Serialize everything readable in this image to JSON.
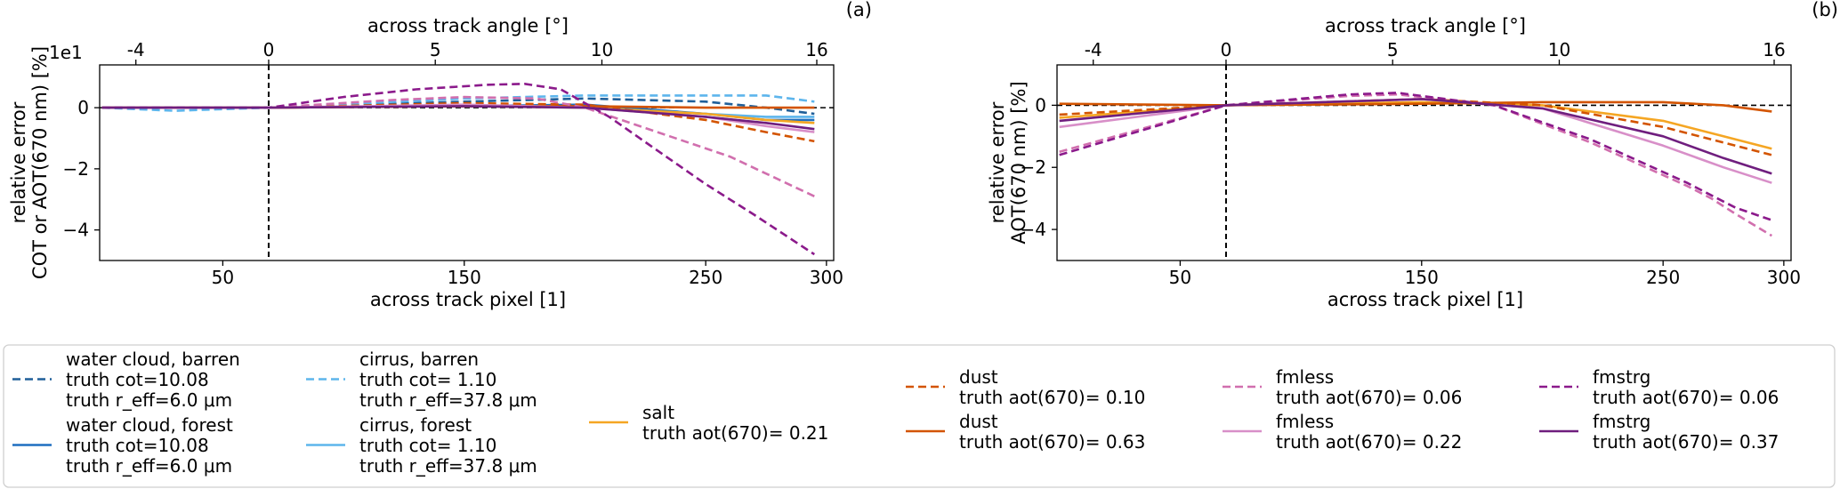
{
  "chart_data": [
    {
      "type": "line",
      "panel_label": "(a)",
      "xlabel": "across track pixel [1]",
      "ylabel_lines": [
        "relative error",
        "COT or AOT(670 nm) [%]"
      ],
      "top_xlabel": "across track angle [°]",
      "offset_label": "1e1",
      "xlim": [
        -1,
        303
      ],
      "ylim": [
        -5.0,
        1.4
      ],
      "xticks": [
        50,
        150,
        250,
        300
      ],
      "xtick_labels": [
        "50",
        "150",
        "250",
        "300"
      ],
      "yticks": [
        0,
        -2,
        -4
      ],
      "ytick_labels": [
        "0",
        "−2",
        "−4"
      ],
      "top_ticks": [
        {
          "x": 14,
          "label": "-4"
        },
        {
          "x": 69,
          "label": "0"
        },
        {
          "x": 138,
          "label": "5"
        },
        {
          "x": 207,
          "label": "10"
        },
        {
          "x": 296,
          "label": "16"
        }
      ],
      "reference_lines": {
        "vertical_x": 69,
        "horizontal_y": 0
      },
      "series": [
        {
          "name": "water cloud, barren",
          "color": "#1f5f99",
          "dash": true,
          "x": [
            0,
            69,
            150,
            200,
            250,
            275,
            295
          ],
          "y": [
            0.0,
            0.0,
            0.2,
            0.3,
            0.2,
            0.0,
            -0.2
          ]
        },
        {
          "name": "water cloud, forest",
          "color": "#1f6fc0",
          "dash": false,
          "x": [
            0,
            69,
            150,
            200,
            250,
            275,
            295
          ],
          "y": [
            0.0,
            0.0,
            0.05,
            0.1,
            -0.2,
            -0.4,
            -0.4
          ]
        },
        {
          "name": "cirrus, barren",
          "color": "#5db5ec",
          "dash": true,
          "x": [
            0,
            30,
            69,
            150,
            200,
            250,
            275,
            295
          ],
          "y": [
            0.0,
            -0.1,
            0.0,
            0.3,
            0.4,
            0.4,
            0.4,
            0.2
          ]
        },
        {
          "name": "cirrus, forest",
          "color": "#5db5ec",
          "dash": false,
          "x": [
            0,
            69,
            150,
            200,
            250,
            275,
            295
          ],
          "y": [
            0.0,
            0.0,
            0.05,
            0.0,
            -0.2,
            -0.3,
            -0.3
          ]
        },
        {
          "name": "salt",
          "color": "#f5a623",
          "dash": false,
          "x": [
            0,
            69,
            150,
            200,
            250,
            275,
            295
          ],
          "y": [
            0.0,
            0.0,
            0.05,
            0.0,
            -0.2,
            -0.4,
            -0.5
          ]
        },
        {
          "name": "dust (aot 0.10)",
          "color": "#d35400",
          "dash": true,
          "x": [
            0,
            69,
            150,
            200,
            250,
            275,
            295
          ],
          "y": [
            0.0,
            0.0,
            0.15,
            0.1,
            -0.4,
            -0.8,
            -1.1
          ]
        },
        {
          "name": "dust (aot 0.63)",
          "color": "#d35400",
          "dash": false,
          "x": [
            0,
            69,
            150,
            200,
            250,
            275,
            295
          ],
          "y": [
            0.0,
            0.0,
            0.05,
            0.05,
            0.0,
            0.0,
            0.0
          ]
        },
        {
          "name": "fmless (aot 0.06)",
          "color": "#d16fae",
          "dash": true,
          "x": [
            0,
            69,
            120,
            150,
            180,
            200,
            230,
            260,
            295
          ],
          "y": [
            0.0,
            0.0,
            0.25,
            0.35,
            0.3,
            0.0,
            -0.8,
            -1.6,
            -2.9
          ]
        },
        {
          "name": "fmless (aot 0.22)",
          "color": "#d88fc8",
          "dash": false,
          "x": [
            0,
            69,
            150,
            200,
            250,
            275,
            295
          ],
          "y": [
            0.0,
            0.0,
            0.1,
            0.0,
            -0.3,
            -0.6,
            -0.8
          ]
        },
        {
          "name": "fmstrg (aot 0.06)",
          "color": "#8b1a8b",
          "dash": true,
          "x": [
            0,
            69,
            100,
            130,
            160,
            175,
            190,
            210,
            230,
            250,
            270,
            295
          ],
          "y": [
            0.0,
            0.0,
            0.35,
            0.6,
            0.75,
            0.78,
            0.6,
            -0.3,
            -1.4,
            -2.5,
            -3.5,
            -4.8
          ]
        },
        {
          "name": "fmstrg (aot 0.37)",
          "color": "#6f1e7e",
          "dash": false,
          "x": [
            0,
            69,
            150,
            200,
            250,
            275,
            295
          ],
          "y": [
            0.0,
            0.0,
            0.05,
            0.0,
            -0.3,
            -0.5,
            -0.7
          ]
        }
      ]
    },
    {
      "type": "line",
      "panel_label": "(b)",
      "xlabel": "across track pixel [1]",
      "ylabel_lines": [
        "relative error",
        "AOT(670 nm) [%]"
      ],
      "top_xlabel": "across track angle [°]",
      "xlim": [
        -1,
        303
      ],
      "ylim": [
        -5.0,
        1.3
      ],
      "xticks": [
        50,
        150,
        250,
        300
      ],
      "xtick_labels": [
        "50",
        "150",
        "250",
        "300"
      ],
      "yticks": [
        0,
        -2,
        -4
      ],
      "ytick_labels": [
        "0",
        "−2",
        "−4"
      ],
      "top_ticks": [
        {
          "x": 14,
          "label": "-4"
        },
        {
          "x": 69,
          "label": "0"
        },
        {
          "x": 138,
          "label": "5"
        },
        {
          "x": 207,
          "label": "10"
        },
        {
          "x": 296,
          "label": "16"
        }
      ],
      "reference_lines": {
        "vertical_x": 69,
        "horizontal_y": 0
      },
      "series": [
        {
          "name": "salt",
          "color": "#f5a623",
          "dash": false,
          "x": [
            0,
            69,
            150,
            200,
            250,
            275,
            295
          ],
          "y": [
            -0.4,
            0.0,
            0.1,
            0.0,
            -0.5,
            -1.0,
            -1.4
          ]
        },
        {
          "name": "dust (aot 0.10)",
          "color": "#d35400",
          "dash": true,
          "x": [
            0,
            69,
            150,
            200,
            250,
            275,
            295
          ],
          "y": [
            -0.3,
            0.0,
            0.2,
            0.0,
            -0.7,
            -1.2,
            -1.6
          ]
        },
        {
          "name": "dust (aot 0.63)",
          "color": "#d35400",
          "dash": false,
          "x": [
            0,
            69,
            150,
            200,
            250,
            275,
            295
          ],
          "y": [
            0.05,
            0.0,
            0.05,
            0.1,
            0.1,
            0.0,
            -0.2
          ]
        },
        {
          "name": "fmless (aot 0.06)",
          "color": "#d16fae",
          "dash": true,
          "x": [
            0,
            69,
            120,
            140,
            180,
            220,
            260,
            270,
            280,
            295
          ],
          "y": [
            -1.5,
            0.0,
            0.3,
            0.35,
            0.0,
            -1.2,
            -2.6,
            -3.0,
            -3.5,
            -4.2
          ]
        },
        {
          "name": "fmless (aot 0.22)",
          "color": "#d88fc8",
          "dash": false,
          "x": [
            0,
            69,
            150,
            200,
            250,
            275,
            295
          ],
          "y": [
            -0.7,
            0.0,
            0.2,
            -0.1,
            -1.3,
            -2.0,
            -2.5
          ]
        },
        {
          "name": "fmstrg (aot 0.06)",
          "color": "#8b1a8b",
          "dash": true,
          "x": [
            0,
            69,
            120,
            140,
            180,
            220,
            260,
            270,
            280,
            295
          ],
          "y": [
            -1.6,
            0.0,
            0.35,
            0.4,
            0.0,
            -1.1,
            -2.5,
            -2.9,
            -3.3,
            -3.7
          ]
        },
        {
          "name": "fmstrg (aot 0.37)",
          "color": "#6f1e7e",
          "dash": false,
          "x": [
            0,
            69,
            150,
            200,
            250,
            275,
            295
          ],
          "y": [
            -0.5,
            0.0,
            0.2,
            -0.1,
            -1.0,
            -1.7,
            -2.2
          ]
        }
      ]
    }
  ],
  "legend": {
    "entries": [
      {
        "line1": "water cloud, barren",
        "line2": "truth cot=10.08",
        "line3": "truth r_eff=6.0 μm",
        "color": "#1f5f99",
        "dash": true
      },
      {
        "line1": "water cloud, forest",
        "line2": "truth cot=10.08",
        "line3": "truth r_eff=6.0 μm",
        "color": "#1f6fc0",
        "dash": false
      },
      {
        "line1": "cirrus, barren",
        "line2": "truth cot= 1.10",
        "line3": "truth r_eff=37.8 μm",
        "color": "#5db5ec",
        "dash": true
      },
      {
        "line1": "cirrus, forest",
        "line2": "truth cot= 1.10",
        "line3": "truth r_eff=37.8 μm",
        "color": "#5db5ec",
        "dash": false
      },
      {
        "line1": "salt",
        "line2": "truth aot(670)= 0.21",
        "color": "#f5a623",
        "dash": false
      },
      {
        "line1": "dust",
        "line2": "truth aot(670)= 0.10",
        "color": "#d35400",
        "dash": true
      },
      {
        "line1": "dust",
        "line2": "truth aot(670)= 0.63",
        "color": "#d35400",
        "dash": false
      },
      {
        "line1": "fmless",
        "line2": "truth aot(670)= 0.06",
        "color": "#d16fae",
        "dash": true
      },
      {
        "line1": "fmless",
        "line2": "truth aot(670)= 0.22",
        "color": "#d88fc8",
        "dash": false
      },
      {
        "line1": "fmstrg",
        "line2": "truth aot(670)= 0.06",
        "color": "#8b1a8b",
        "dash": true
      },
      {
        "line1": "fmstrg",
        "line2": "truth aot(670)= 0.37",
        "color": "#6f1e7e",
        "dash": false
      }
    ]
  }
}
